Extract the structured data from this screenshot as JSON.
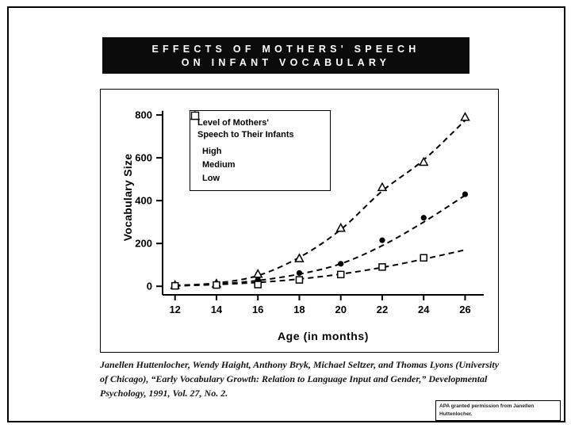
{
  "slide": {
    "title_line1": "EFFECTS OF MOTHERS' SPEECH",
    "title_line2": "ON INFANT VOCABULARY",
    "caption": "Janellen Huttenlocher, Wendy Haight, Anthony Bryk, Michael Seltzer, and Thomas Lyons (University of Chicago), “Early Vocabulary Growth: Relation to Language Input and Gender,” Developmental Psychology, 1991, Vol. 27, No. 2.",
    "permission": "APA granted permission from Janellen Huttenlocher."
  },
  "legend": {
    "title_line1": "Level of Mothers'",
    "title_line2": "Speech to Their Infants",
    "items": [
      {
        "marker": "triangle-open",
        "label": "High"
      },
      {
        "marker": "circle-filled",
        "label": "Medium"
      },
      {
        "marker": "square-open",
        "label": "Low"
      }
    ]
  },
  "chart_data": {
    "type": "scatter",
    "title": "Effects of Mothers' Speech on Infant Vocabulary",
    "xlabel": "Age (in months)",
    "ylabel": "Vocabulary Size",
    "x_ticks": [
      12,
      14,
      16,
      18,
      20,
      22,
      24,
      26
    ],
    "y_ticks": [
      0,
      200,
      400,
      600,
      800
    ],
    "xlim": [
      11.4,
      26.9
    ],
    "ylim": [
      -40,
      830
    ],
    "line_style": "dashed",
    "colors": {
      "ink": "#000000",
      "paper": "#ffffff"
    },
    "series": [
      {
        "name": "High",
        "marker": "triangle-open",
        "points": [
          [
            12,
            5
          ],
          [
            14,
            12
          ],
          [
            16,
            57
          ],
          [
            18,
            130
          ],
          [
            20,
            272
          ],
          [
            22,
            462
          ],
          [
            24,
            580
          ],
          [
            26,
            790
          ]
        ],
        "trend": [
          [
            12,
            4
          ],
          [
            14,
            15
          ],
          [
            16,
            50
          ],
          [
            18,
            135
          ],
          [
            20,
            265
          ],
          [
            22,
            445
          ],
          [
            24,
            590
          ],
          [
            26,
            775
          ]
        ]
      },
      {
        "name": "Medium",
        "marker": "circle-filled",
        "points": [
          [
            12,
            4
          ],
          [
            14,
            10
          ],
          [
            16,
            30
          ],
          [
            18,
            62
          ],
          [
            20,
            105
          ],
          [
            22,
            215
          ],
          [
            24,
            320
          ],
          [
            26,
            430
          ]
        ],
        "trend": [
          [
            12,
            3
          ],
          [
            14,
            10
          ],
          [
            16,
            27
          ],
          [
            18,
            57
          ],
          [
            20,
            105
          ],
          [
            22,
            190
          ],
          [
            24,
            300
          ],
          [
            26,
            425
          ]
        ]
      },
      {
        "name": "Low",
        "marker": "square-open",
        "points": [
          [
            12,
            2
          ],
          [
            14,
            6
          ],
          [
            16,
            8
          ],
          [
            18,
            30
          ],
          [
            20,
            55
          ],
          [
            22,
            90
          ],
          [
            24,
            133
          ]
        ],
        "trend": [
          [
            12,
            2
          ],
          [
            14,
            8
          ],
          [
            16,
            18
          ],
          [
            18,
            34
          ],
          [
            20,
            57
          ],
          [
            22,
            88
          ],
          [
            24,
            127
          ],
          [
            26,
            170
          ]
        ]
      }
    ]
  }
}
